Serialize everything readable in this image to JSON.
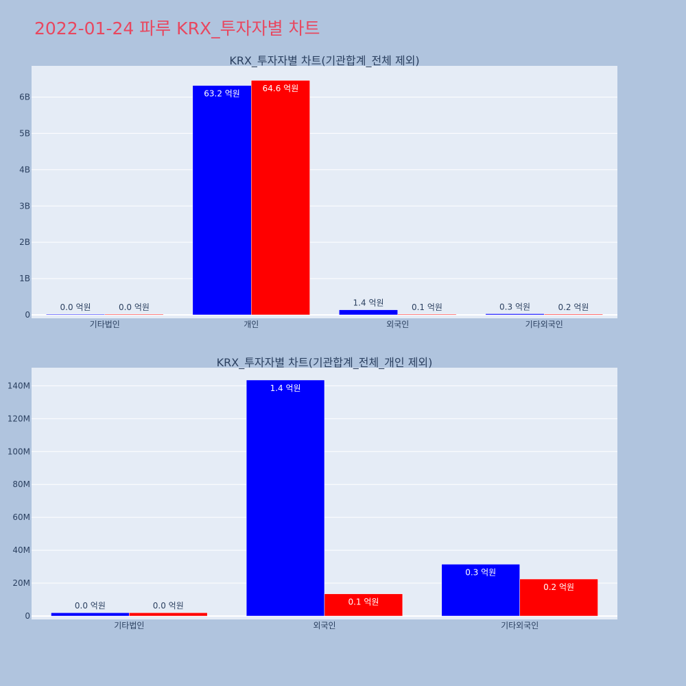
{
  "title": "2022-01-24 파루 KRX_투자자별 차트",
  "colors": {
    "buy": "#0000ff",
    "sell": "#ff0000",
    "plot_bg": "#e5ecf6",
    "page_bg": "#b0c4de",
    "title": "#e8475f",
    "text": "#2a3f5f"
  },
  "chart_data": [
    {
      "type": "bar",
      "title": "KRX_투자자별 차트(기관합계_전체 제외)",
      "categories": [
        "기타법인",
        "개인",
        "외국인",
        "기타외국인"
      ],
      "series": [
        {
          "values": [
            0,
            6320000000,
            140000000,
            30000000
          ],
          "labels": [
            "0.0 억원",
            "63.2 억원",
            "1.4 억원",
            "0.3 억원"
          ]
        },
        {
          "values": [
            0,
            6460000000,
            10000000,
            20000000
          ],
          "labels": [
            "0.0 억원",
            "64.6 억원",
            "0.1 억원",
            "0.2 억원"
          ]
        }
      ],
      "yticks": [
        0,
        1000000000,
        2000000000,
        3000000000,
        4000000000,
        5000000000,
        6000000000
      ],
      "ytick_labels": [
        "0",
        "1B",
        "2B",
        "3B",
        "4B",
        "5B",
        "6B"
      ],
      "ylim": [
        0,
        6860000000
      ],
      "grid": true
    },
    {
      "type": "bar",
      "title": "KRX_투자자별 차트(기관합계_전체_개인 제외)",
      "categories": [
        "기타법인",
        "외국인",
        "기타외국인"
      ],
      "series": [
        {
          "values": [
            2000000,
            143500000,
            31500000
          ],
          "labels": [
            "0.0 억원",
            "1.4 억원",
            "0.3 억원"
          ]
        },
        {
          "values": [
            2000000,
            13500000,
            22500000
          ],
          "labels": [
            "0.0 억원",
            "0.1 억원",
            "0.2 억원"
          ]
        }
      ],
      "yticks": [
        0,
        20000000,
        40000000,
        60000000,
        80000000,
        100000000,
        120000000,
        140000000
      ],
      "ytick_labels": [
        "0",
        "20M",
        "40M",
        "60M",
        "80M",
        "100M",
        "120M",
        "140M"
      ],
      "ylim": [
        0,
        151000000
      ],
      "grid": true
    }
  ]
}
